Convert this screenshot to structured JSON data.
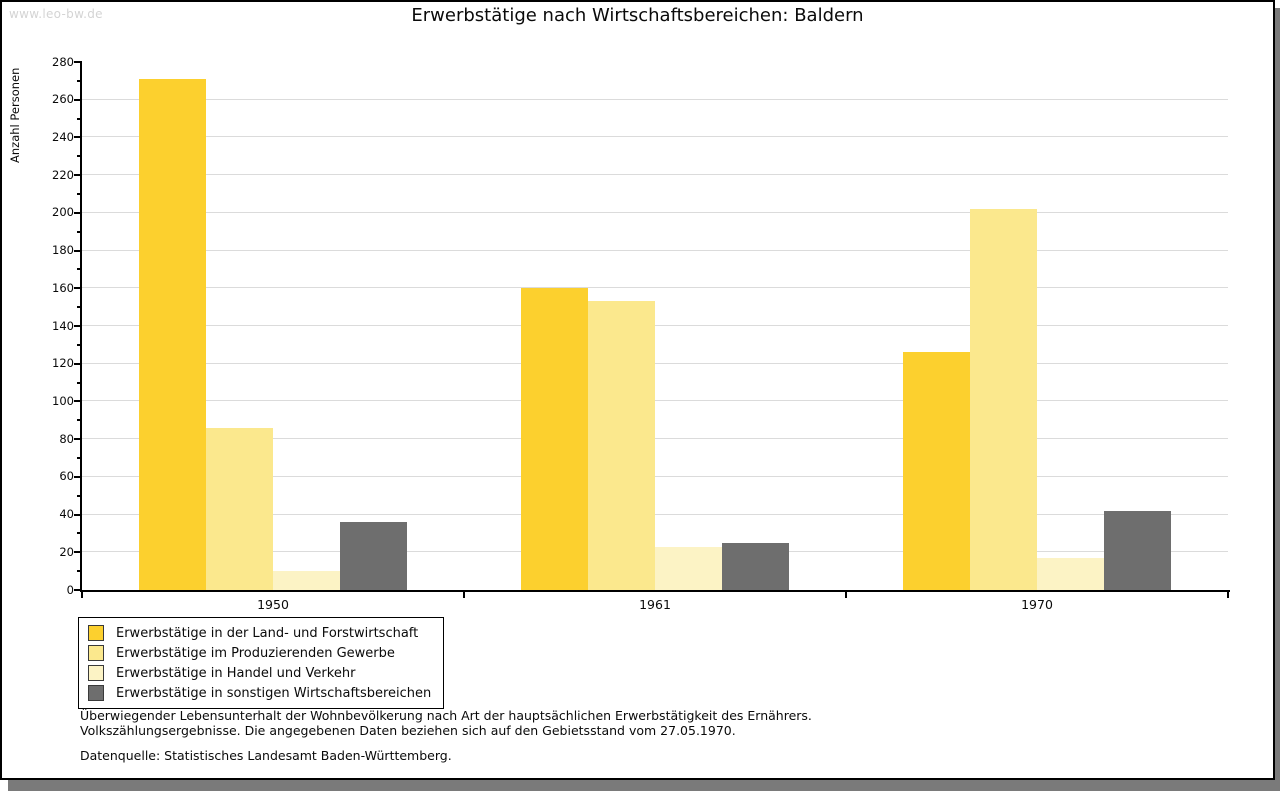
{
  "page": {
    "watermark": "www.leo-bw.de"
  },
  "chart_data": {
    "type": "bar",
    "title": "Erwerbstätige nach Wirtschaftsbereichen: Baldern",
    "ylabel": "Anzahl Personen",
    "xlabel": "",
    "categories": [
      "1950",
      "1961",
      "1970"
    ],
    "series": [
      {
        "name": "Erwerbstätige in der Land- und Forstwirtschaft",
        "color": "#fcd02e",
        "values": [
          271,
          160,
          126
        ]
      },
      {
        "name": "Erwerbstätige im Produzierenden Gewerbe",
        "color": "#fbe88d",
        "values": [
          86,
          153,
          202
        ]
      },
      {
        "name": "Erwerbstätige in Handel und Verkehr",
        "color": "#fcf3c5",
        "values": [
          10,
          23,
          17
        ]
      },
      {
        "name": "Erwerbstätige in sonstigen Wirtschaftsbereichen",
        "color": "#6e6e6e",
        "values": [
          36,
          25,
          42
        ]
      }
    ],
    "ylim": [
      0,
      280
    ],
    "ytick_step": 20,
    "grid": true,
    "legend_position": "bottom-left"
  },
  "footer": {
    "line1": "Überwiegender Lebensunterhalt der Wohnbevölkerung nach Art der hauptsächlichen Erwerbstätigkeit des Ernährers.",
    "line2": "Volkszählungsergebnisse. Die angegebenen Daten beziehen sich auf den Gebietsstand vom 27.05.1970.",
    "source": "Datenquelle: Statistisches Landesamt Baden-Württemberg."
  }
}
